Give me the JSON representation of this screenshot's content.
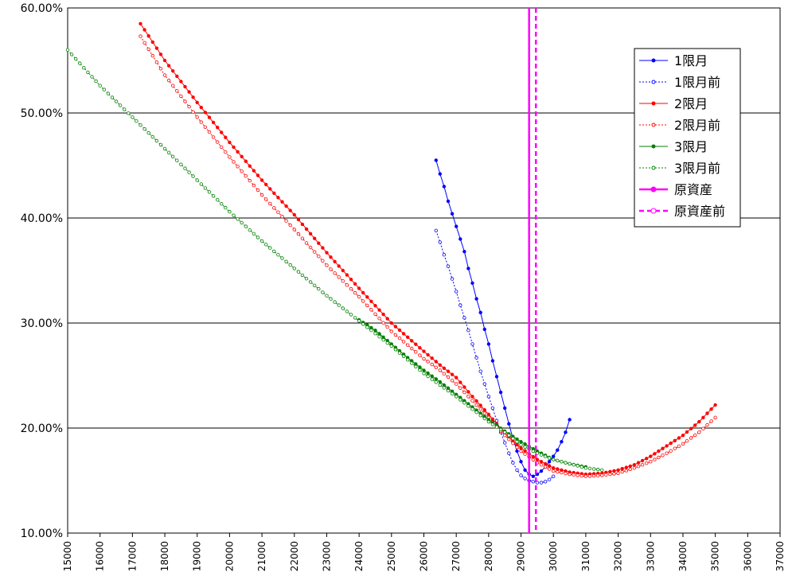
{
  "chart_data": {
    "type": "line",
    "title": "",
    "xlabel": "",
    "ylabel": "",
    "xlim": [
      15000,
      37000
    ],
    "ylim": [
      10,
      60
    ],
    "x_ticks": [
      15000,
      16000,
      17000,
      18000,
      19000,
      20000,
      21000,
      22000,
      23000,
      24000,
      25000,
      26000,
      27000,
      28000,
      29000,
      30000,
      31000,
      32000,
      33000,
      34000,
      35000,
      36000,
      37000
    ],
    "x_tick_labels": [
      "15000",
      "16000",
      "17000",
      "18000",
      "19000",
      "20000",
      "21000",
      "22000",
      "23000",
      "24000",
      "25000",
      "26000",
      "27000",
      "28000",
      "29000",
      "30000",
      "31000",
      "32000",
      "33000",
      "34000",
      "35000",
      "36000",
      "37000"
    ],
    "y_ticks": [
      10,
      20,
      30,
      40,
      50,
      60
    ],
    "y_tick_labels": [
      "10.00%",
      "20.00%",
      "30.00%",
      "40.00%",
      "50.00%",
      "60.00%"
    ],
    "grid": "horizontal",
    "legend_position": "top-right",
    "series": [
      {
        "name": "1限月",
        "color": "#0000ff",
        "style": "solid",
        "marker": "filled",
        "points": [
          [
            26375,
            45.5
          ],
          [
            26500,
            44.2
          ],
          [
            26625,
            43
          ],
          [
            26750,
            41.6
          ],
          [
            26875,
            40.4
          ],
          [
            27000,
            39.2
          ],
          [
            27125,
            38
          ],
          [
            27250,
            36.8
          ],
          [
            27375,
            35.2
          ],
          [
            27500,
            33.8
          ],
          [
            27625,
            32.3
          ],
          [
            27750,
            31
          ],
          [
            27875,
            29.4
          ],
          [
            28000,
            28
          ],
          [
            28125,
            26.4
          ],
          [
            28250,
            24.9
          ],
          [
            28375,
            23.4
          ],
          [
            28500,
            21.9
          ],
          [
            28625,
            20.4
          ],
          [
            28750,
            19
          ],
          [
            28875,
            17.8
          ],
          [
            29000,
            16.8
          ],
          [
            29125,
            16
          ],
          [
            29250,
            15.6
          ],
          [
            29375,
            15.4
          ],
          [
            29500,
            15.6
          ],
          [
            29625,
            15.9
          ],
          [
            29750,
            16.3
          ],
          [
            29875,
            16.8
          ],
          [
            30000,
            17.3
          ],
          [
            30125,
            17.9
          ],
          [
            30250,
            18.7
          ],
          [
            30375,
            19.6
          ],
          [
            30500,
            20.8
          ]
        ]
      },
      {
        "name": "1限月前",
        "color": "#0000ff",
        "style": "dotted",
        "marker": "hollow",
        "points": [
          [
            26375,
            38.8
          ],
          [
            26500,
            37.7
          ],
          [
            26625,
            36.5
          ],
          [
            26750,
            35.4
          ],
          [
            26875,
            34.2
          ],
          [
            27000,
            33
          ],
          [
            27125,
            31.7
          ],
          [
            27250,
            30.5
          ],
          [
            27375,
            29.3
          ],
          [
            27500,
            28
          ],
          [
            27625,
            26.7
          ],
          [
            27750,
            25.4
          ],
          [
            27875,
            24.2
          ],
          [
            28000,
            23
          ],
          [
            28125,
            21.9
          ],
          [
            28250,
            20.7
          ],
          [
            28375,
            19.6
          ],
          [
            28500,
            18.6
          ],
          [
            28625,
            17.6
          ],
          [
            28750,
            16.7
          ],
          [
            28875,
            16
          ],
          [
            29000,
            15.5
          ],
          [
            29125,
            15.2
          ],
          [
            29250,
            15
          ],
          [
            29375,
            14.9
          ],
          [
            29500,
            14.8
          ],
          [
            29625,
            14.8
          ],
          [
            29750,
            14.9
          ],
          [
            29875,
            15.1
          ],
          [
            30000,
            15.4
          ]
        ]
      },
      {
        "name": "2限月",
        "color": "#ff0000",
        "style": "solid",
        "marker": "filled",
        "points": [
          [
            17250,
            58.5
          ],
          [
            18000,
            55
          ],
          [
            19000,
            51
          ],
          [
            20000,
            47.2
          ],
          [
            21000,
            43.6
          ],
          [
            22000,
            40.3
          ],
          [
            23000,
            36.7
          ],
          [
            24000,
            33.3
          ],
          [
            25000,
            30
          ],
          [
            26000,
            27.3
          ],
          [
            26500,
            26
          ],
          [
            27000,
            24.8
          ],
          [
            27500,
            23
          ],
          [
            28000,
            21.3
          ],
          [
            28500,
            19.5
          ],
          [
            29000,
            18.1
          ],
          [
            29500,
            17
          ],
          [
            30000,
            16.2
          ],
          [
            30500,
            15.8
          ],
          [
            31000,
            15.6
          ],
          [
            31500,
            15.7
          ],
          [
            32000,
            16
          ],
          [
            32500,
            16.5
          ],
          [
            33000,
            17.3
          ],
          [
            33500,
            18.3
          ],
          [
            34000,
            19.3
          ],
          [
            34500,
            20.6
          ],
          [
            35000,
            22.2
          ]
        ]
      },
      {
        "name": "2限月前",
        "color": "#ff0000",
        "style": "dotted",
        "marker": "hollow",
        "points": [
          [
            17250,
            57.3
          ],
          [
            18000,
            53.6
          ],
          [
            19000,
            49.6
          ],
          [
            20000,
            45.8
          ],
          [
            21000,
            42.2
          ],
          [
            22000,
            38.9
          ],
          [
            23000,
            35.5
          ],
          [
            24000,
            32.5
          ],
          [
            25000,
            29.2
          ],
          [
            26000,
            26.6
          ],
          [
            26500,
            25.5
          ],
          [
            27000,
            24.2
          ],
          [
            27500,
            22.6
          ],
          [
            28000,
            21
          ],
          [
            28500,
            19.3
          ],
          [
            29000,
            17.8
          ],
          [
            29500,
            16.7
          ],
          [
            30000,
            15.9
          ],
          [
            30500,
            15.6
          ],
          [
            31000,
            15.4
          ],
          [
            31500,
            15.5
          ],
          [
            32000,
            15.7
          ],
          [
            32500,
            16.2
          ],
          [
            33000,
            16.8
          ],
          [
            33500,
            17.6
          ],
          [
            34000,
            18.5
          ],
          [
            34500,
            19.6
          ],
          [
            35000,
            21
          ]
        ]
      },
      {
        "name": "3限月",
        "color": "#008000",
        "style": "solid",
        "marker": "filled",
        "points": [
          [
            24000,
            30.3
          ],
          [
            24500,
            29.3
          ],
          [
            25000,
            28
          ],
          [
            25500,
            26.7
          ],
          [
            26000,
            25.5
          ],
          [
            26500,
            24.4
          ],
          [
            27000,
            23.2
          ],
          [
            27500,
            22
          ],
          [
            28000,
            20.8
          ],
          [
            28500,
            19.7
          ],
          [
            29000,
            18.7
          ],
          [
            29500,
            17.8
          ],
          [
            30000,
            17
          ],
          [
            30500,
            16.6
          ],
          [
            31000,
            16.3
          ]
        ]
      },
      {
        "name": "3限月前",
        "color": "#008000",
        "style": "dotted",
        "marker": "hollow",
        "points": [
          [
            15000,
            56
          ],
          [
            16000,
            52.6
          ],
          [
            17000,
            49.6
          ],
          [
            18000,
            46.6
          ],
          [
            19000,
            43.6
          ],
          [
            20000,
            40.6
          ],
          [
            21000,
            37.8
          ],
          [
            22000,
            35.2
          ],
          [
            23000,
            32.6
          ],
          [
            24000,
            30.2
          ],
          [
            25000,
            27.8
          ],
          [
            26000,
            25.2
          ],
          [
            27000,
            23
          ],
          [
            28000,
            20.6
          ],
          [
            28500,
            19.6
          ],
          [
            29000,
            18.4
          ],
          [
            29500,
            17.6
          ],
          [
            30000,
            17
          ],
          [
            30500,
            16.6
          ],
          [
            31000,
            16.2
          ],
          [
            31500,
            16
          ]
        ]
      },
      {
        "name": "原資産",
        "color": "#ff00ff",
        "style": "solid",
        "marker": "none",
        "vertical_at": 29250
      },
      {
        "name": "原資産前",
        "color": "#ff00ff",
        "style": "dashed",
        "marker": "none",
        "vertical_at": 29460
      }
    ]
  }
}
